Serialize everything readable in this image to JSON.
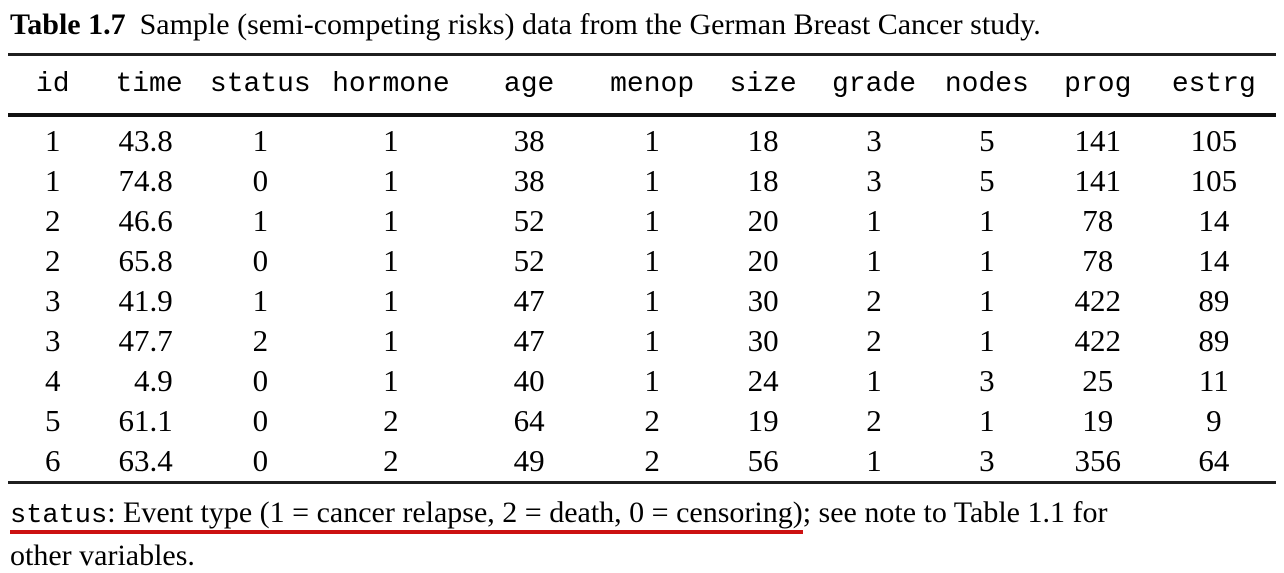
{
  "title": {
    "label": "Table 1.7",
    "caption": "Sample (semi-competing risks) data from the German Breast Cancer study."
  },
  "table": {
    "columns": [
      "id",
      "time",
      "status",
      "hormone",
      "age",
      "menop",
      "size",
      "grade",
      "nodes",
      "prog",
      "estrg"
    ],
    "rows": [
      [
        "1",
        "43.8",
        "1",
        "1",
        "38",
        "1",
        "18",
        "3",
        "5",
        "141",
        "105"
      ],
      [
        "1",
        "74.8",
        "0",
        "1",
        "38",
        "1",
        "18",
        "3",
        "5",
        "141",
        "105"
      ],
      [
        "2",
        "46.6",
        "1",
        "1",
        "52",
        "1",
        "20",
        "1",
        "1",
        "78",
        "14"
      ],
      [
        "2",
        "65.8",
        "0",
        "1",
        "52",
        "1",
        "20",
        "1",
        "1",
        "78",
        "14"
      ],
      [
        "3",
        "41.9",
        "1",
        "1",
        "47",
        "1",
        "30",
        "2",
        "1",
        "422",
        "89"
      ],
      [
        "3",
        "47.7",
        "2",
        "1",
        "47",
        "1",
        "30",
        "2",
        "1",
        "422",
        "89"
      ],
      [
        "4",
        "4.9",
        "0",
        "1",
        "40",
        "1",
        "24",
        "1",
        "3",
        "25",
        "11"
      ],
      [
        "5",
        "61.1",
        "0",
        "2",
        "64",
        "2",
        "19",
        "2",
        "1",
        "19",
        "9"
      ],
      [
        "6",
        "63.4",
        "0",
        "2",
        "49",
        "2",
        "56",
        "1",
        "3",
        "356",
        "64"
      ]
    ]
  },
  "footnote": {
    "status_label": "status",
    "underlined_rest": ": Event type (1 = cancer relapse, 2 = death, 0 = censoring)",
    "after_underline": "; see note to Table 1.1 for",
    "line2": "other variables.",
    "underline_color": "#cc1111"
  }
}
